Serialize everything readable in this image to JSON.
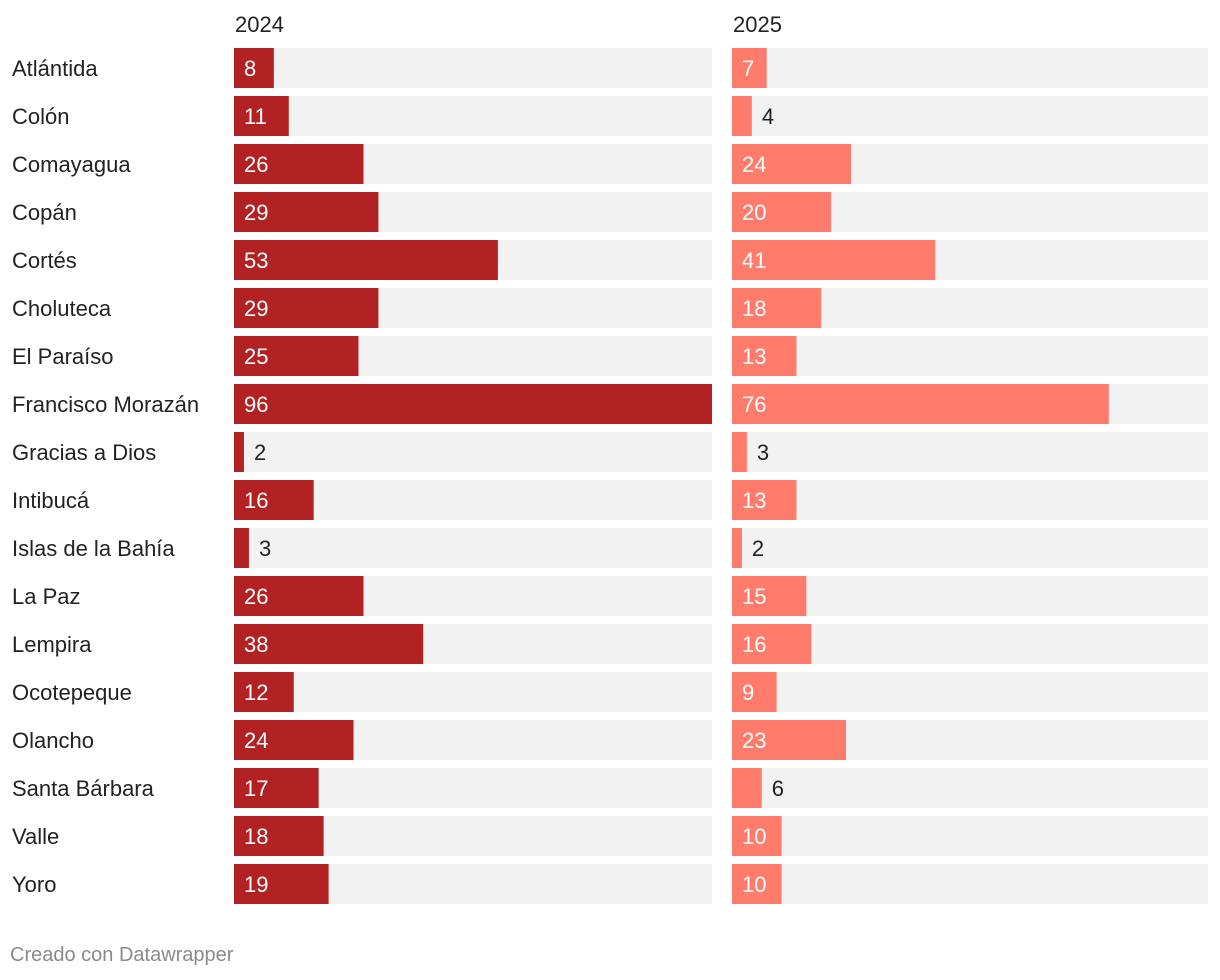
{
  "chart_data": {
    "type": "bar",
    "title": "",
    "categories": [
      "Atlántida",
      "Colón",
      "Comayagua",
      "Copán",
      "Cortés",
      "Choluteca",
      "El Paraíso",
      "Francisco Morazán",
      "Gracias a Dios",
      "Intibucá",
      "Islas de la Bahía",
      "La Paz",
      "Lempira",
      "Ocotepeque",
      "Olancho",
      "Santa Bárbara",
      "Valle",
      "Yoro"
    ],
    "series": [
      {
        "name": "2024",
        "color": "#b22222",
        "values": [
          8,
          11,
          26,
          29,
          53,
          29,
          25,
          96,
          2,
          16,
          3,
          26,
          38,
          12,
          24,
          17,
          18,
          19
        ]
      },
      {
        "name": "2025",
        "color": "#ff7b6b",
        "values": [
          7,
          4,
          24,
          20,
          41,
          18,
          13,
          76,
          3,
          13,
          2,
          15,
          16,
          9,
          23,
          6,
          10,
          10
        ]
      }
    ],
    "xlim": [
      0,
      96
    ],
    "track_color": "#f2f2f2",
    "grid": false,
    "legend": "none"
  },
  "footer": {
    "credit": "Creado con Datawrapper"
  }
}
